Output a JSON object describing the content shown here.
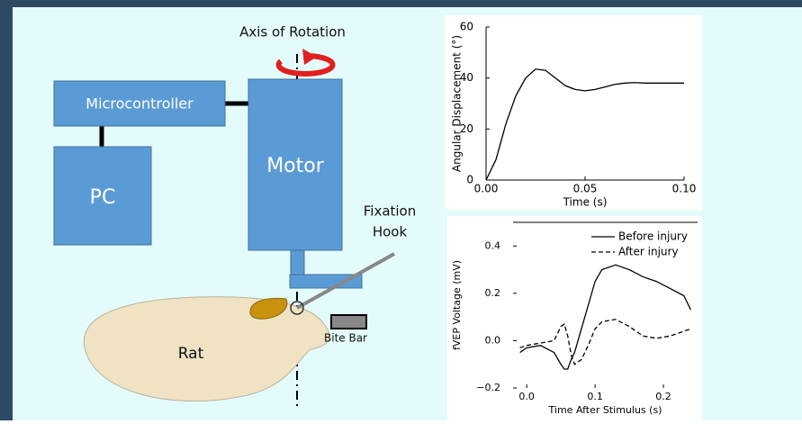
{
  "diagram": {
    "axis": "Axis of Rotation",
    "microcontroller": "Microcontroller",
    "pc": "PC",
    "motor": "Motor",
    "hook": [
      "Fixation",
      "Hook"
    ],
    "rat": "Rat",
    "bite_bar": "Bite Bar"
  },
  "chart_data": [
    {
      "type": "line",
      "xlabel": "Time (s)",
      "ylabel": "Angular Displacement (°)",
      "x": [
        0,
        0.005,
        0.01,
        0.015,
        0.02,
        0.025,
        0.03,
        0.035,
        0.04,
        0.045,
        0.05,
        0.055,
        0.06,
        0.065,
        0.07,
        0.075,
        0.08,
        0.09,
        0.1
      ],
      "series": [
        {
          "color": "#000000",
          "values": [
            0,
            8,
            22,
            33,
            40,
            43.5,
            43,
            40,
            37,
            35.5,
            35,
            35.5,
            36.5,
            37.5,
            38,
            38.2,
            38,
            38,
            38
          ]
        }
      ],
      "xlim": [
        0,
        0.1
      ],
      "ylim": [
        0,
        60
      ],
      "xticks": [
        {
          "value": 0,
          "label": "0.00"
        },
        {
          "value": 0.05,
          "label": "0.05"
        },
        {
          "value": 0.1,
          "label": "0.10"
        }
      ],
      "yticks": [
        0,
        20,
        40,
        60
      ]
    },
    {
      "type": "line",
      "xlabel": "Time After Stimulus (s)",
      "ylabel": "fVEP Voltage (mV)",
      "x": [
        -0.01,
        0.0,
        0.02,
        0.04,
        0.05,
        0.055,
        0.06,
        0.065,
        0.07,
        0.08,
        0.09,
        0.1,
        0.11,
        0.13,
        0.15,
        0.17,
        0.19,
        0.21,
        0.23,
        0.24
      ],
      "series": [
        {
          "name": "Before injury",
          "color": "#000000",
          "dash": false,
          "values": [
            -0.05,
            -0.03,
            -0.02,
            -0.05,
            -0.1,
            -0.12,
            -0.12,
            -0.08,
            -0.05,
            0.05,
            0.15,
            0.25,
            0.3,
            0.32,
            0.3,
            0.27,
            0.25,
            0.22,
            0.19,
            0.13
          ]
        },
        {
          "name": "After injury",
          "color": "#000000",
          "dash": true,
          "values": [
            -0.03,
            -0.02,
            -0.01,
            0.0,
            0.06,
            0.07,
            0.02,
            -0.06,
            -0.1,
            -0.08,
            -0.02,
            0.05,
            0.08,
            0.09,
            0.06,
            0.02,
            0.01,
            0.02,
            0.04,
            0.05
          ]
        }
      ],
      "xlim": [
        -0.02,
        0.25
      ],
      "ylim": [
        -0.2,
        0.5
      ],
      "xticks": [
        {
          "value": 0,
          "label": "0.0"
        },
        0.1,
        0.2
      ],
      "yticks": [
        {
          "value": -0.2,
          "label": "−0.2"
        },
        {
          "value": 0,
          "label": "0.0"
        },
        0.2,
        0.4
      ]
    }
  ]
}
